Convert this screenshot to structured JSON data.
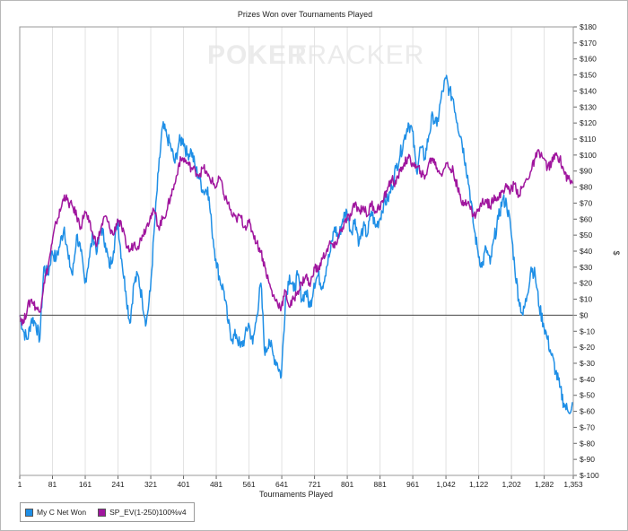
{
  "chart_data": {
    "type": "line",
    "title": "Prizes Won over Tournaments Played",
    "xlabel": "Tournaments Played",
    "ylabel": "$",
    "watermark_a": "POKER",
    "watermark_b": "TRACKER",
    "xlim": [
      1,
      1353
    ],
    "ylim": [
      -100,
      180
    ],
    "x_ticks": [
      1,
      81,
      161,
      241,
      321,
      401,
      481,
      561,
      641,
      721,
      801,
      881,
      961,
      1042,
      1122,
      1202,
      1282,
      1353
    ],
    "x_tick_labels": [
      "1",
      "81",
      "161",
      "241",
      "321",
      "401",
      "481",
      "561",
      "641",
      "721",
      "801",
      "881",
      "961",
      "1,042",
      "1,122",
      "1,202",
      "1,282",
      "1,353"
    ],
    "y_ticks": [
      180,
      170,
      160,
      150,
      140,
      130,
      120,
      110,
      100,
      90,
      80,
      70,
      60,
      50,
      40,
      30,
      20,
      10,
      0,
      -10,
      -20,
      -30,
      -40,
      -50,
      -60,
      -70,
      -80,
      -90,
      -100
    ],
    "y_tick_labels": [
      "$180",
      "$170",
      "$160",
      "$150",
      "$140",
      "$130",
      "$120",
      "$110",
      "$100",
      "$90",
      "$80",
      "$70",
      "$60",
      "$50",
      "$40",
      "$30",
      "$20",
      "$10",
      "$0",
      "$-10",
      "$-20",
      "$-30",
      "$-40",
      "$-50",
      "$-60",
      "$-70",
      "$-80",
      "$-90",
      "$-100"
    ],
    "grid": "vertical",
    "legend_position": "bottom-left",
    "series": [
      {
        "name": "My C Net Won",
        "color": "#1f8fe6",
        "points": [
          [
            1,
            0
          ],
          [
            10,
            -10
          ],
          [
            20,
            -15
          ],
          [
            30,
            -2
          ],
          [
            40,
            -5
          ],
          [
            50,
            -15
          ],
          [
            60,
            30
          ],
          [
            70,
            25
          ],
          [
            80,
            40
          ],
          [
            90,
            35
          ],
          [
            100,
            45
          ],
          [
            110,
            55
          ],
          [
            120,
            35
          ],
          [
            130,
            25
          ],
          [
            140,
            50
          ],
          [
            150,
            40
          ],
          [
            160,
            20
          ],
          [
            170,
            35
          ],
          [
            180,
            50
          ],
          [
            190,
            40
          ],
          [
            200,
            55
          ],
          [
            210,
            45
          ],
          [
            220,
            30
          ],
          [
            230,
            40
          ],
          [
            240,
            60
          ],
          [
            250,
            35
          ],
          [
            260,
            15
          ],
          [
            270,
            -5
          ],
          [
            280,
            20
          ],
          [
            290,
            25
          ],
          [
            300,
            10
          ],
          [
            310,
            -5
          ],
          [
            320,
            15
          ],
          [
            330,
            55
          ],
          [
            340,
            90
          ],
          [
            350,
            118
          ],
          [
            360,
            112
          ],
          [
            370,
            105
          ],
          [
            380,
            95
          ],
          [
            390,
            108
          ],
          [
            400,
            110
          ],
          [
            410,
            100
          ],
          [
            420,
            103
          ],
          [
            430,
            92
          ],
          [
            440,
            85
          ],
          [
            450,
            77
          ],
          [
            460,
            80
          ],
          [
            470,
            55
          ],
          [
            480,
            35
          ],
          [
            490,
            22
          ],
          [
            500,
            15
          ],
          [
            510,
            -5
          ],
          [
            520,
            -15
          ],
          [
            530,
            -12
          ],
          [
            540,
            -20
          ],
          [
            550,
            -15
          ],
          [
            560,
            -5
          ],
          [
            570,
            -18
          ],
          [
            580,
            0
          ],
          [
            590,
            20
          ],
          [
            600,
            -25
          ],
          [
            610,
            -15
          ],
          [
            620,
            -25
          ],
          [
            630,
            -30
          ],
          [
            640,
            -38
          ],
          [
            650,
            10
          ],
          [
            660,
            25
          ],
          [
            670,
            15
          ],
          [
            680,
            25
          ],
          [
            690,
            10
          ],
          [
            700,
            15
          ],
          [
            710,
            5
          ],
          [
            720,
            20
          ],
          [
            730,
            25
          ],
          [
            740,
            18
          ],
          [
            750,
            30
          ],
          [
            760,
            40
          ],
          [
            770,
            55
          ],
          [
            780,
            48
          ],
          [
            790,
            60
          ],
          [
            800,
            65
          ],
          [
            810,
            52
          ],
          [
            820,
            60
          ],
          [
            830,
            45
          ],
          [
            840,
            55
          ],
          [
            850,
            50
          ],
          [
            860,
            65
          ],
          [
            870,
            55
          ],
          [
            880,
            60
          ],
          [
            890,
            70
          ],
          [
            900,
            72
          ],
          [
            910,
            80
          ],
          [
            920,
            92
          ],
          [
            930,
            100
          ],
          [
            940,
            110
          ],
          [
            950,
            120
          ],
          [
            960,
            115
          ],
          [
            970,
            90
          ],
          [
            980,
            105
          ],
          [
            990,
            98
          ],
          [
            1000,
            112
          ],
          [
            1010,
            125
          ],
          [
            1020,
            118
          ],
          [
            1030,
            135
          ],
          [
            1042,
            148
          ],
          [
            1050,
            140
          ],
          [
            1060,
            135
          ],
          [
            1070,
            120
          ],
          [
            1080,
            110
          ],
          [
            1090,
            95
          ],
          [
            1100,
            78
          ],
          [
            1110,
            55
          ],
          [
            1120,
            40
          ],
          [
            1130,
            30
          ],
          [
            1140,
            42
          ],
          [
            1150,
            32
          ],
          [
            1160,
            48
          ],
          [
            1170,
            60
          ],
          [
            1180,
            72
          ],
          [
            1190,
            70
          ],
          [
            1200,
            55
          ],
          [
            1210,
            30
          ],
          [
            1220,
            10
          ],
          [
            1230,
            0
          ],
          [
            1240,
            12
          ],
          [
            1250,
            30
          ],
          [
            1260,
            25
          ],
          [
            1270,
            5
          ],
          [
            1280,
            -5
          ],
          [
            1290,
            -15
          ],
          [
            1300,
            -25
          ],
          [
            1310,
            -35
          ],
          [
            1320,
            -45
          ],
          [
            1330,
            -55
          ],
          [
            1340,
            -60
          ],
          [
            1353,
            -55
          ]
        ]
      },
      {
        "name": "SP_EV(1-250)100%v4",
        "color": "#a0169e",
        "points": [
          [
            1,
            0
          ],
          [
            10,
            -5
          ],
          [
            20,
            5
          ],
          [
            30,
            10
          ],
          [
            40,
            5
          ],
          [
            50,
            2
          ],
          [
            60,
            20
          ],
          [
            70,
            30
          ],
          [
            80,
            45
          ],
          [
            90,
            58
          ],
          [
            100,
            65
          ],
          [
            110,
            75
          ],
          [
            120,
            70
          ],
          [
            130,
            68
          ],
          [
            140,
            62
          ],
          [
            150,
            55
          ],
          [
            160,
            65
          ],
          [
            170,
            58
          ],
          [
            180,
            50
          ],
          [
            190,
            45
          ],
          [
            200,
            55
          ],
          [
            210,
            62
          ],
          [
            220,
            55
          ],
          [
            230,
            50
          ],
          [
            240,
            60
          ],
          [
            250,
            55
          ],
          [
            260,
            45
          ],
          [
            270,
            40
          ],
          [
            280,
            45
          ],
          [
            290,
            43
          ],
          [
            300,
            50
          ],
          [
            310,
            55
          ],
          [
            320,
            62
          ],
          [
            330,
            65
          ],
          [
            340,
            55
          ],
          [
            350,
            60
          ],
          [
            360,
            65
          ],
          [
            370,
            75
          ],
          [
            380,
            82
          ],
          [
            390,
            95
          ],
          [
            400,
            98
          ],
          [
            410,
            95
          ],
          [
            420,
            92
          ],
          [
            430,
            90
          ],
          [
            440,
            88
          ],
          [
            450,
            92
          ],
          [
            460,
            87
          ],
          [
            470,
            84
          ],
          [
            480,
            80
          ],
          [
            490,
            86
          ],
          [
            500,
            75
          ],
          [
            510,
            70
          ],
          [
            520,
            62
          ],
          [
            530,
            60
          ],
          [
            540,
            62
          ],
          [
            550,
            55
          ],
          [
            560,
            58
          ],
          [
            570,
            52
          ],
          [
            580,
            45
          ],
          [
            590,
            40
          ],
          [
            600,
            30
          ],
          [
            610,
            20
          ],
          [
            620,
            12
          ],
          [
            630,
            8
          ],
          [
            640,
            5
          ],
          [
            650,
            15
          ],
          [
            660,
            5
          ],
          [
            670,
            10
          ],
          [
            680,
            15
          ],
          [
            690,
            20
          ],
          [
            700,
            25
          ],
          [
            710,
            18
          ],
          [
            720,
            30
          ],
          [
            730,
            28
          ],
          [
            740,
            35
          ],
          [
            750,
            40
          ],
          [
            760,
            45
          ],
          [
            770,
            42
          ],
          [
            780,
            50
          ],
          [
            790,
            55
          ],
          [
            800,
            60
          ],
          [
            810,
            62
          ],
          [
            820,
            70
          ],
          [
            830,
            65
          ],
          [
            840,
            68
          ],
          [
            850,
            62
          ],
          [
            860,
            70
          ],
          [
            870,
            65
          ],
          [
            880,
            68
          ],
          [
            890,
            72
          ],
          [
            900,
            80
          ],
          [
            910,
            85
          ],
          [
            920,
            82
          ],
          [
            930,
            90
          ],
          [
            940,
            95
          ],
          [
            950,
            98
          ],
          [
            960,
            95
          ],
          [
            970,
            92
          ],
          [
            980,
            90
          ],
          [
            990,
            85
          ],
          [
            1000,
            95
          ],
          [
            1010,
            98
          ],
          [
            1020,
            92
          ],
          [
            1030,
            88
          ],
          [
            1042,
            95
          ],
          [
            1050,
            92
          ],
          [
            1060,
            90
          ],
          [
            1070,
            80
          ],
          [
            1080,
            70
          ],
          [
            1090,
            72
          ],
          [
            1100,
            68
          ],
          [
            1110,
            62
          ],
          [
            1120,
            65
          ],
          [
            1130,
            70
          ],
          [
            1140,
            72
          ],
          [
            1150,
            68
          ],
          [
            1160,
            75
          ],
          [
            1170,
            72
          ],
          [
            1180,
            78
          ],
          [
            1190,
            80
          ],
          [
            1200,
            78
          ],
          [
            1210,
            82
          ],
          [
            1220,
            75
          ],
          [
            1230,
            80
          ],
          [
            1240,
            85
          ],
          [
            1250,
            90
          ],
          [
            1260,
            98
          ],
          [
            1270,
            102
          ],
          [
            1280,
            98
          ],
          [
            1290,
            92
          ],
          [
            1300,
            95
          ],
          [
            1310,
            100
          ],
          [
            1320,
            98
          ],
          [
            1330,
            90
          ],
          [
            1340,
            85
          ],
          [
            1353,
            82
          ]
        ]
      }
    ]
  }
}
